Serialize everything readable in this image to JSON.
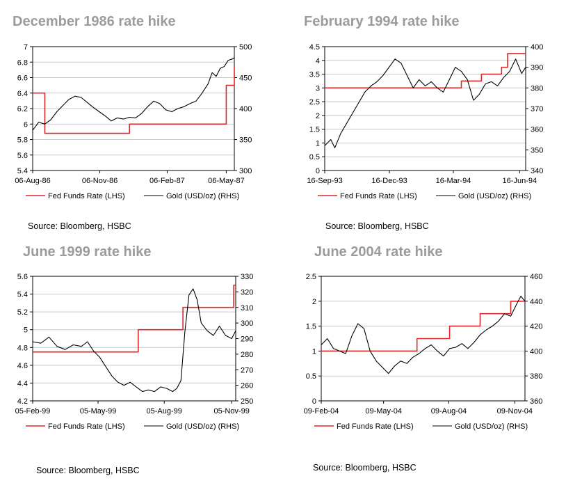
{
  "charts": [
    {
      "title": "December 1986 rate hike",
      "source": "Source: Bloomberg, HSBC",
      "chart_data": {
        "type": "line",
        "left_axis": {
          "min": 5.4,
          "max": 7,
          "ticks": [
            "5.4",
            "5.6",
            "5.8",
            "6",
            "6.2",
            "6.4",
            "6.6",
            "6.8",
            "7"
          ]
        },
        "right_axis": {
          "min": 300,
          "max": 500,
          "ticks": [
            "300",
            "350",
            "400",
            "450",
            "500"
          ]
        },
        "x_ticks": [
          {
            "label": "06-Aug-86",
            "pos": 0.0
          },
          {
            "label": "06-Nov-86",
            "pos": 0.333
          },
          {
            "label": "06-Feb-87",
            "pos": 0.667
          },
          {
            "label": "06-May-87",
            "pos": 0.96
          }
        ],
        "legend": [
          "Fed Funds Rate (LHS)",
          "Gold (USD/oz) (RHS)"
        ],
        "grid": true,
        "series": [
          {
            "name": "Fed Funds Rate (LHS)",
            "axis": "left",
            "color": "#e0262b",
            "step": true,
            "points": [
              [
                0,
                6.4
              ],
              [
                0.06,
                6.4
              ],
              [
                0.06,
                5.88
              ],
              [
                0.48,
                5.88
              ],
              [
                0.48,
                6.0
              ],
              [
                0.96,
                6.0
              ],
              [
                0.96,
                6.5
              ],
              [
                1.0,
                6.5
              ],
              [
                1.0,
                6.75
              ]
            ]
          },
          {
            "name": "Gold (USD/oz) (RHS)",
            "axis": "right",
            "color": "#000000",
            "points": [
              [
                0,
                365
              ],
              [
                0.03,
                378
              ],
              [
                0.06,
                375
              ],
              [
                0.09,
                382
              ],
              [
                0.12,
                395
              ],
              [
                0.15,
                405
              ],
              [
                0.18,
                415
              ],
              [
                0.21,
                420
              ],
              [
                0.24,
                418
              ],
              [
                0.27,
                410
              ],
              [
                0.3,
                402
              ],
              [
                0.33,
                395
              ],
              [
                0.36,
                388
              ],
              [
                0.39,
                380
              ],
              [
                0.42,
                385
              ],
              [
                0.45,
                383
              ],
              [
                0.48,
                386
              ],
              [
                0.51,
                385
              ],
              [
                0.54,
                392
              ],
              [
                0.57,
                403
              ],
              [
                0.6,
                412
              ],
              [
                0.63,
                408
              ],
              [
                0.66,
                398
              ],
              [
                0.69,
                395
              ],
              [
                0.72,
                400
              ],
              [
                0.75,
                403
              ],
              [
                0.78,
                408
              ],
              [
                0.81,
                412
              ],
              [
                0.84,
                425
              ],
              [
                0.87,
                440
              ],
              [
                0.89,
                458
              ],
              [
                0.91,
                452
              ],
              [
                0.93,
                465
              ],
              [
                0.95,
                468
              ],
              [
                0.97,
                478
              ],
              [
                0.99,
                480
              ],
              [
                1.0,
                482
              ]
            ]
          }
        ]
      }
    },
    {
      "title": "February 1994 rate hike",
      "source": "Source: Bloomberg, HSBC",
      "chart_data": {
        "type": "line",
        "left_axis": {
          "min": 0,
          "max": 4.5,
          "ticks": [
            "0",
            "0.5",
            "1",
            "1.5",
            "2",
            "2.5",
            "3",
            "3.5",
            "4",
            "4.5"
          ]
        },
        "right_axis": {
          "min": 340,
          "max": 400,
          "ticks": [
            "340",
            "350",
            "360",
            "370",
            "380",
            "390",
            "400"
          ]
        },
        "x_ticks": [
          {
            "label": "16-Sep-93",
            "pos": 0.0
          },
          {
            "label": "16-Dec-93",
            "pos": 0.322
          },
          {
            "label": "16-Mar-94",
            "pos": 0.64
          },
          {
            "label": "16-Jun-94",
            "pos": 0.97
          }
        ],
        "legend": [
          "Fed Funds Rate (LHS)",
          "Gold (USD/oz) (RHS)"
        ],
        "grid": true,
        "series": [
          {
            "name": "Fed Funds Rate (LHS)",
            "axis": "left",
            "color": "#e0262b",
            "step": true,
            "points": [
              [
                0,
                3.0
              ],
              [
                0.68,
                3.0
              ],
              [
                0.68,
                3.25
              ],
              [
                0.78,
                3.25
              ],
              [
                0.78,
                3.5
              ],
              [
                0.88,
                3.5
              ],
              [
                0.88,
                3.75
              ],
              [
                0.91,
                3.75
              ],
              [
                0.91,
                4.25
              ],
              [
                1.0,
                4.25
              ]
            ]
          },
          {
            "name": "Gold (USD/oz) (RHS)",
            "axis": "right",
            "color": "#000000",
            "points": [
              [
                0,
                352
              ],
              [
                0.03,
                355
              ],
              [
                0.05,
                351
              ],
              [
                0.08,
                358
              ],
              [
                0.11,
                363
              ],
              [
                0.14,
                368
              ],
              [
                0.17,
                373
              ],
              [
                0.2,
                378
              ],
              [
                0.23,
                381
              ],
              [
                0.26,
                383
              ],
              [
                0.29,
                386
              ],
              [
                0.32,
                390
              ],
              [
                0.35,
                394
              ],
              [
                0.38,
                392
              ],
              [
                0.41,
                386
              ],
              [
                0.44,
                380
              ],
              [
                0.47,
                384
              ],
              [
                0.5,
                381
              ],
              [
                0.53,
                383
              ],
              [
                0.56,
                380
              ],
              [
                0.59,
                378
              ],
              [
                0.62,
                384
              ],
              [
                0.65,
                390
              ],
              [
                0.68,
                388
              ],
              [
                0.71,
                384
              ],
              [
                0.74,
                374
              ],
              [
                0.77,
                377
              ],
              [
                0.8,
                382
              ],
              [
                0.83,
                383
              ],
              [
                0.86,
                381
              ],
              [
                0.89,
                385
              ],
              [
                0.92,
                388
              ],
              [
                0.95,
                394
              ],
              [
                0.98,
                387
              ],
              [
                1.0,
                390
              ]
            ]
          }
        ]
      }
    },
    {
      "title": "June 1999 rate hike",
      "source": "Source: Bloomberg, HSBC",
      "chart_data": {
        "type": "line",
        "left_axis": {
          "min": 4.2,
          "max": 5.6,
          "ticks": [
            "4.2",
            "4.4",
            "4.6",
            "4.8",
            "5",
            "5.2",
            "5.4",
            "5.6"
          ]
        },
        "right_axis": {
          "min": 250,
          "max": 330,
          "ticks": [
            "250",
            "260",
            "270",
            "280",
            "290",
            "300",
            "310",
            "320",
            "330"
          ]
        },
        "x_ticks": [
          {
            "label": "05-Feb-99",
            "pos": 0.0
          },
          {
            "label": "05-May-99",
            "pos": 0.322
          },
          {
            "label": "05-Aug-99",
            "pos": 0.648
          },
          {
            "label": "05-Nov-99",
            "pos": 0.98
          }
        ],
        "legend": [
          "Fed Funds Rate (LHS)",
          "Gold (USD/oz) (RHS)"
        ],
        "grid": true,
        "series": [
          {
            "name": "Fed Funds Rate (LHS)",
            "axis": "left",
            "color": "#e0262b",
            "step": true,
            "points": [
              [
                0,
                4.75
              ],
              [
                0.52,
                4.75
              ],
              [
                0.52,
                5.0
              ],
              [
                0.74,
                5.0
              ],
              [
                0.74,
                5.25
              ],
              [
                0.99,
                5.25
              ],
              [
                0.99,
                5.5
              ],
              [
                1.0,
                5.5
              ]
            ]
          },
          {
            "name": "Gold (USD/oz) (RHS)",
            "axis": "right",
            "color": "#000000",
            "points": [
              [
                0,
                288
              ],
              [
                0.04,
                287
              ],
              [
                0.08,
                291
              ],
              [
                0.12,
                285
              ],
              [
                0.16,
                283
              ],
              [
                0.2,
                286
              ],
              [
                0.24,
                285
              ],
              [
                0.27,
                288
              ],
              [
                0.3,
                282
              ],
              [
                0.33,
                278
              ],
              [
                0.36,
                272
              ],
              [
                0.39,
                266
              ],
              [
                0.42,
                262
              ],
              [
                0.45,
                260
              ],
              [
                0.48,
                262
              ],
              [
                0.51,
                259
              ],
              [
                0.54,
                256
              ],
              [
                0.57,
                257
              ],
              [
                0.6,
                256
              ],
              [
                0.63,
                259
              ],
              [
                0.66,
                258
              ],
              [
                0.69,
                256
              ],
              [
                0.71,
                258
              ],
              [
                0.73,
                263
              ],
              [
                0.75,
                295
              ],
              [
                0.77,
                318
              ],
              [
                0.79,
                322
              ],
              [
                0.81,
                315
              ],
              [
                0.83,
                300
              ],
              [
                0.86,
                295
              ],
              [
                0.89,
                292
              ],
              [
                0.92,
                298
              ],
              [
                0.95,
                292
              ],
              [
                0.98,
                290
              ],
              [
                1.0,
                295
              ]
            ]
          }
        ]
      }
    },
    {
      "title": "June 2004 rate hike",
      "source": "Source: Bloomberg, HSBC",
      "chart_data": {
        "type": "line",
        "left_axis": {
          "min": 0,
          "max": 2.5,
          "ticks": [
            "0",
            "0.5",
            "1",
            "1.5",
            "2",
            "2.5"
          ]
        },
        "right_axis": {
          "min": 360,
          "max": 460,
          "ticks": [
            "360",
            "380",
            "400",
            "420",
            "440",
            "460"
          ]
        },
        "x_ticks": [
          {
            "label": "09-Feb-04",
            "pos": 0.0
          },
          {
            "label": "09-May-04",
            "pos": 0.306
          },
          {
            "label": "09-Aug-04",
            "pos": 0.626
          },
          {
            "label": "09-Nov-04",
            "pos": 0.95
          }
        ],
        "legend": [
          "Fed Funds Rate (LHS)",
          "Gold (USD/oz) (RHS)"
        ],
        "grid": true,
        "series": [
          {
            "name": "Fed Funds Rate (LHS)",
            "axis": "left",
            "color": "#e0262b",
            "step": true,
            "points": [
              [
                0,
                1.0
              ],
              [
                0.47,
                1.0
              ],
              [
                0.47,
                1.25
              ],
              [
                0.63,
                1.25
              ],
              [
                0.63,
                1.5
              ],
              [
                0.78,
                1.5
              ],
              [
                0.78,
                1.75
              ],
              [
                0.93,
                1.75
              ],
              [
                0.93,
                2.0
              ],
              [
                1.0,
                2.0
              ]
            ]
          },
          {
            "name": "Gold (USD/oz) (RHS)",
            "axis": "right",
            "color": "#000000",
            "points": [
              [
                0,
                405
              ],
              [
                0.03,
                410
              ],
              [
                0.06,
                402
              ],
              [
                0.09,
                400
              ],
              [
                0.12,
                398
              ],
              [
                0.15,
                412
              ],
              [
                0.18,
                422
              ],
              [
                0.21,
                418
              ],
              [
                0.24,
                400
              ],
              [
                0.27,
                392
              ],
              [
                0.3,
                387
              ],
              [
                0.33,
                382
              ],
              [
                0.36,
                388
              ],
              [
                0.39,
                392
              ],
              [
                0.42,
                390
              ],
              [
                0.45,
                395
              ],
              [
                0.48,
                398
              ],
              [
                0.51,
                402
              ],
              [
                0.54,
                405
              ],
              [
                0.57,
                400
              ],
              [
                0.6,
                396
              ],
              [
                0.63,
                402
              ],
              [
                0.66,
                403
              ],
              [
                0.69,
                406
              ],
              [
                0.72,
                402
              ],
              [
                0.75,
                407
              ],
              [
                0.78,
                413
              ],
              [
                0.81,
                417
              ],
              [
                0.84,
                420
              ],
              [
                0.87,
                424
              ],
              [
                0.9,
                430
              ],
              [
                0.93,
                428
              ],
              [
                0.96,
                438
              ],
              [
                0.98,
                444
              ],
              [
                1.0,
                440
              ]
            ]
          }
        ]
      }
    }
  ]
}
